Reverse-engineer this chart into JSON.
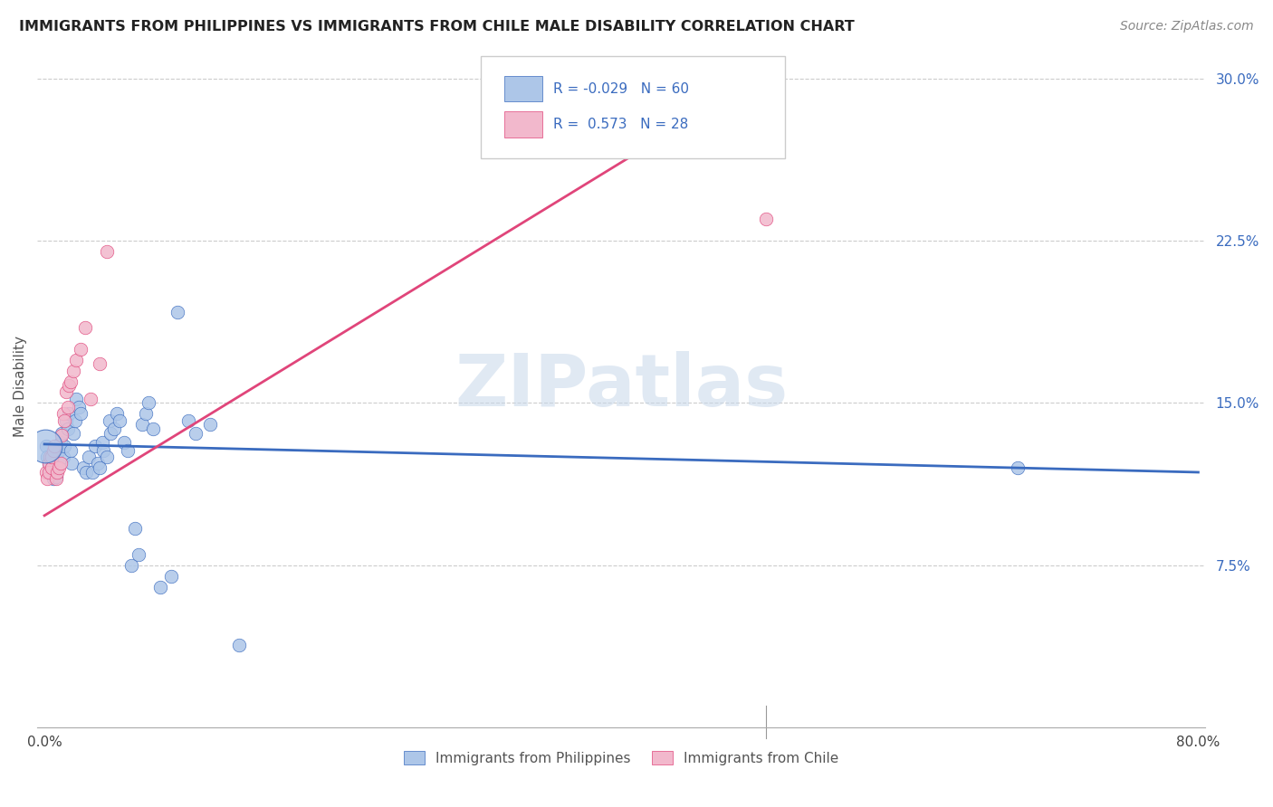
{
  "title": "IMMIGRANTS FROM PHILIPPINES VS IMMIGRANTS FROM CHILE MALE DISABILITY CORRELATION CHART",
  "source": "Source: ZipAtlas.com",
  "ylabel": "Male Disability",
  "xlim": [
    -0.005,
    0.805
  ],
  "ylim": [
    0.0,
    0.315
  ],
  "yticks": [
    0.075,
    0.15,
    0.225,
    0.3
  ],
  "ytick_labels": [
    "7.5%",
    "15.0%",
    "22.5%",
    "30.0%"
  ],
  "xtick_positions": [
    0.0,
    0.1,
    0.2,
    0.3,
    0.4,
    0.5,
    0.6,
    0.7,
    0.8
  ],
  "xtick_labels": [
    "0.0%",
    "",
    "",
    "",
    "",
    "",
    "",
    "",
    "80.0%"
  ],
  "legend_labels": [
    "Immigrants from Philippines",
    "Immigrants from Chile"
  ],
  "R_philippines": -0.029,
  "N_philippines": 60,
  "R_chile": 0.573,
  "N_chile": 28,
  "color_philippines": "#adc6e8",
  "color_chile": "#f2b8cc",
  "line_color_philippines": "#3a6bbf",
  "line_color_chile": "#e0457a",
  "watermark_text": "ZIPatlas",
  "phil_line_x": [
    0.0,
    0.8
  ],
  "phil_line_y": [
    0.131,
    0.118
  ],
  "chile_line_x": [
    0.0,
    0.5
  ],
  "chile_line_y": [
    0.098,
    0.302
  ],
  "philippines_x": [
    0.001,
    0.002,
    0.003,
    0.004,
    0.005,
    0.005,
    0.006,
    0.006,
    0.007,
    0.007,
    0.008,
    0.009,
    0.009,
    0.01,
    0.011,
    0.012,
    0.013,
    0.014,
    0.015,
    0.016,
    0.017,
    0.018,
    0.019,
    0.02,
    0.021,
    0.022,
    0.024,
    0.025,
    0.027,
    0.029,
    0.031,
    0.033,
    0.035,
    0.037,
    0.038,
    0.04,
    0.041,
    0.043,
    0.045,
    0.046,
    0.048,
    0.05,
    0.052,
    0.055,
    0.058,
    0.06,
    0.063,
    0.065,
    0.068,
    0.07,
    0.072,
    0.075,
    0.08,
    0.088,
    0.092,
    0.1,
    0.105,
    0.115,
    0.135,
    0.675
  ],
  "philippines_y": [
    0.13,
    0.125,
    0.122,
    0.118,
    0.12,
    0.125,
    0.115,
    0.122,
    0.118,
    0.128,
    0.116,
    0.124,
    0.12,
    0.128,
    0.132,
    0.136,
    0.125,
    0.13,
    0.142,
    0.138,
    0.145,
    0.128,
    0.122,
    0.136,
    0.142,
    0.152,
    0.148,
    0.145,
    0.12,
    0.118,
    0.125,
    0.118,
    0.13,
    0.122,
    0.12,
    0.132,
    0.128,
    0.125,
    0.142,
    0.136,
    0.138,
    0.145,
    0.142,
    0.132,
    0.128,
    0.075,
    0.092,
    0.08,
    0.14,
    0.145,
    0.15,
    0.138,
    0.065,
    0.07,
    0.192,
    0.142,
    0.136,
    0.14,
    0.038,
    0.12
  ],
  "chile_x": [
    0.001,
    0.002,
    0.003,
    0.003,
    0.004,
    0.005,
    0.005,
    0.006,
    0.007,
    0.008,
    0.009,
    0.01,
    0.011,
    0.012,
    0.013,
    0.014,
    0.015,
    0.016,
    0.017,
    0.018,
    0.02,
    0.022,
    0.025,
    0.028,
    0.032,
    0.038,
    0.043,
    0.5
  ],
  "chile_y": [
    0.118,
    0.115,
    0.122,
    0.118,
    0.125,
    0.12,
    0.125,
    0.128,
    0.13,
    0.115,
    0.118,
    0.12,
    0.122,
    0.135,
    0.145,
    0.142,
    0.155,
    0.148,
    0.158,
    0.16,
    0.165,
    0.17,
    0.175,
    0.185,
    0.152,
    0.168,
    0.22,
    0.235
  ]
}
